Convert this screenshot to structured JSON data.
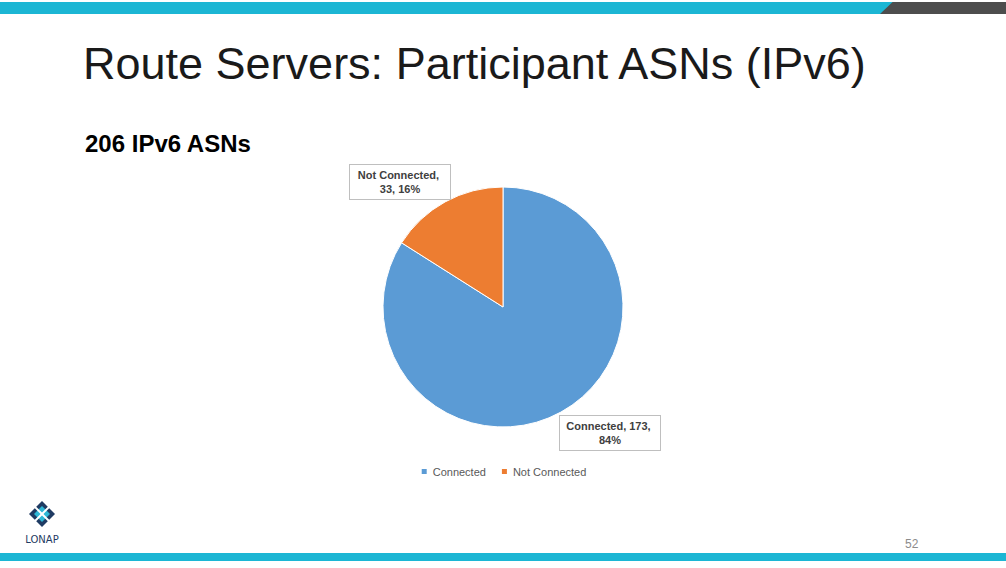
{
  "chart_data": {
    "type": "pie",
    "title": "Route Servers: Participant ASNs (IPv6)",
    "subtitle": "206 IPv6 ASNs",
    "categories": [
      "Connected",
      "Not Connected"
    ],
    "values": [
      173,
      33
    ],
    "value_labels": [
      "Connected, 173, 84%",
      "Not Connected, 33, 16%"
    ],
    "colors": [
      "#5b9bd5",
      "#ed7d31"
    ],
    "data_labels": true,
    "legend": "bottom"
  },
  "slide": {
    "page_number": 52,
    "logo_text": "LONAP"
  }
}
